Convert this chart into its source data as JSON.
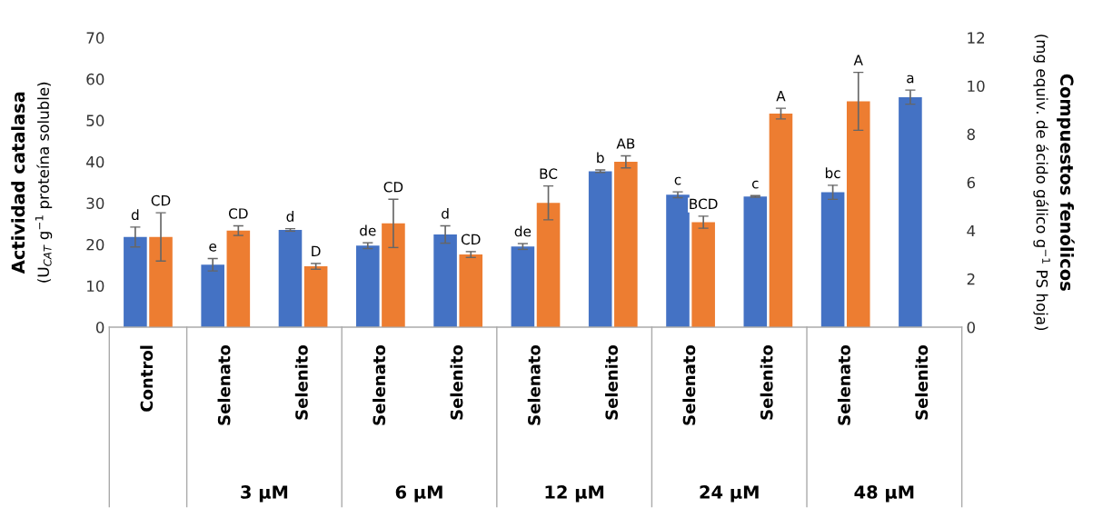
{
  "chart_data": {
    "type": "bar",
    "categories": [
      "Control",
      "Selenato",
      "Selenito",
      "Selenato",
      "Selenito",
      "Selenato",
      "Selenito",
      "Selenato",
      "Selenito",
      "Selenato",
      "Selenito"
    ],
    "ylabel": "Actividad catalasa\n(U$_{CAT}$ g$^{−1}$ proteína soluble)",
    "y2label": "Compuestos fenólicos\n(mg equiv. de ácido gálico g$^{−1}$ PS hoja)",
    "ylim": [
      0,
      70
    ],
    "yticks": [
      0,
      10,
      20,
      30,
      40,
      50,
      60,
      70
    ],
    "y2lim": [
      0,
      12
    ],
    "y2ticks": [
      0,
      2,
      4,
      6,
      8,
      10,
      12
    ],
    "annotations": [
      "3 μM",
      "6 μM",
      "12 μM",
      "24 μM",
      "48 μM"
    ],
    "grid": false,
    "series": [
      {
        "color": "#4472c4",
        "values": [
          21.8,
          15.1,
          23.5,
          19.7,
          22.4,
          19.5,
          37.7,
          32.0,
          31.6,
          32.6,
          55.6
        ],
        "errors": [
          2.4,
          1.5,
          0.3,
          0.7,
          2.1,
          0.7,
          0.3,
          0.7,
          0.2,
          1.7,
          1.7
        ],
        "value_labels": [
          "d",
          "e",
          "d",
          "de",
          "d",
          "de",
          "b",
          "c",
          "c",
          "bc",
          "a"
        ]
      },
      {
        "color": "#ed7d31",
        "axis": "y2",
        "values": [
          3.74,
          4.0,
          2.52,
          4.3,
          3.01,
          5.15,
          6.85,
          4.35,
          8.85,
          9.36,
          null
        ],
        "errors": [
          1.0,
          0.2,
          0.12,
          1.0,
          0.12,
          0.7,
          0.25,
          0.25,
          0.22,
          1.2,
          null
        ],
        "value_labels": [
          "CD",
          "CD",
          "D",
          "CD",
          "CD",
          "BC",
          "AB",
          "BCD",
          "A",
          "A",
          null
        ]
      }
    ]
  }
}
